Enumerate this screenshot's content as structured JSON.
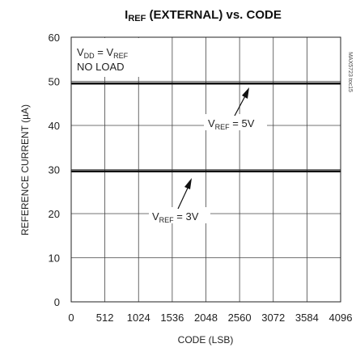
{
  "chart_data": {
    "type": "line",
    "title_main": "I",
    "title_sub": "REF",
    "title_rest": " (EXTERNAL) vs. CODE",
    "xlabel": "CODE (LSB)",
    "ylabel": "REFERENCE CURRENT (µA)",
    "xlim": [
      0,
      4096
    ],
    "ylim": [
      0,
      60
    ],
    "x_ticks": [
      "0",
      "512",
      "1024",
      "1536",
      "2048",
      "2560",
      "3072",
      "3584",
      "4096"
    ],
    "y_ticks": [
      "0",
      "10",
      "20",
      "30",
      "40",
      "50",
      "60"
    ],
    "grid": true,
    "series": [
      {
        "name": "VREF = 5V",
        "color": "#111111",
        "x": [
          0,
          512,
          1024,
          1536,
          2048,
          2560,
          3072,
          3584,
          4096
        ],
        "values": [
          49.5,
          49.5,
          49.5,
          49.5,
          49.5,
          49.5,
          49.5,
          49.5,
          49.5
        ]
      },
      {
        "name": "VREF = 3V",
        "color": "#111111",
        "x": [
          0,
          512,
          1024,
          1536,
          2048,
          2560,
          3072,
          3584,
          4096
        ],
        "values": [
          29.6,
          29.6,
          29.6,
          29.6,
          29.6,
          29.6,
          29.6,
          29.6,
          29.6
        ]
      }
    ],
    "conditions": {
      "line1_a": "V",
      "line1_a_sub": "DD",
      "line1_b": " = V",
      "line1_b_sub": "REF",
      "line2": "NO LOAD"
    },
    "annotation_5v": {
      "pre": "V",
      "sub": "REF",
      "post": " = 5V"
    },
    "annotation_3v": {
      "pre": "V",
      "sub": "REF",
      "post": " = 3V"
    },
    "side_label": "MAX5723 toc15"
  }
}
